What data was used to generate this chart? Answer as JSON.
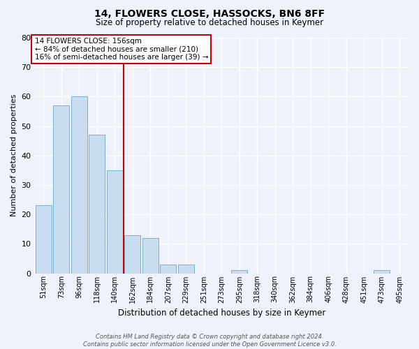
{
  "title": "14, FLOWERS CLOSE, HASSOCKS, BN6 8FF",
  "subtitle": "Size of property relative to detached houses in Keymer",
  "xlabel": "Distribution of detached houses by size in Keymer",
  "ylabel": "Number of detached properties",
  "bin_labels": [
    "51sqm",
    "73sqm",
    "96sqm",
    "118sqm",
    "140sqm",
    "162sqm",
    "184sqm",
    "207sqm",
    "229sqm",
    "251sqm",
    "273sqm",
    "295sqm",
    "318sqm",
    "340sqm",
    "362sqm",
    "384sqm",
    "406sqm",
    "428sqm",
    "451sqm",
    "473sqm",
    "495sqm"
  ],
  "bar_values": [
    23,
    57,
    60,
    47,
    35,
    13,
    12,
    3,
    3,
    0,
    0,
    1,
    0,
    0,
    0,
    0,
    0,
    0,
    0,
    1,
    0
  ],
  "bar_color": "#c8ddf0",
  "bar_edge_color": "#7ab0d4",
  "property_line_x": 4.5,
  "property_line_color": "#cc0000",
  "ylim": [
    0,
    80
  ],
  "yticks": [
    0,
    10,
    20,
    30,
    40,
    50,
    60,
    70,
    80
  ],
  "annotation_title": "14 FLOWERS CLOSE: 156sqm",
  "annotation_line1": "← 84% of detached houses are smaller (210)",
  "annotation_line2": "16% of semi-detached houses are larger (39) →",
  "annotation_box_color": "#ffffff",
  "annotation_box_edge": "#cc0000",
  "footer_line1": "Contains HM Land Registry data © Crown copyright and database right 2024.",
  "footer_line2": "Contains public sector information licensed under the Open Government Licence v3.0.",
  "background_color": "#eef2fa",
  "grid_color": "#ffffff",
  "plot_bg_color": "#eef2fa"
}
